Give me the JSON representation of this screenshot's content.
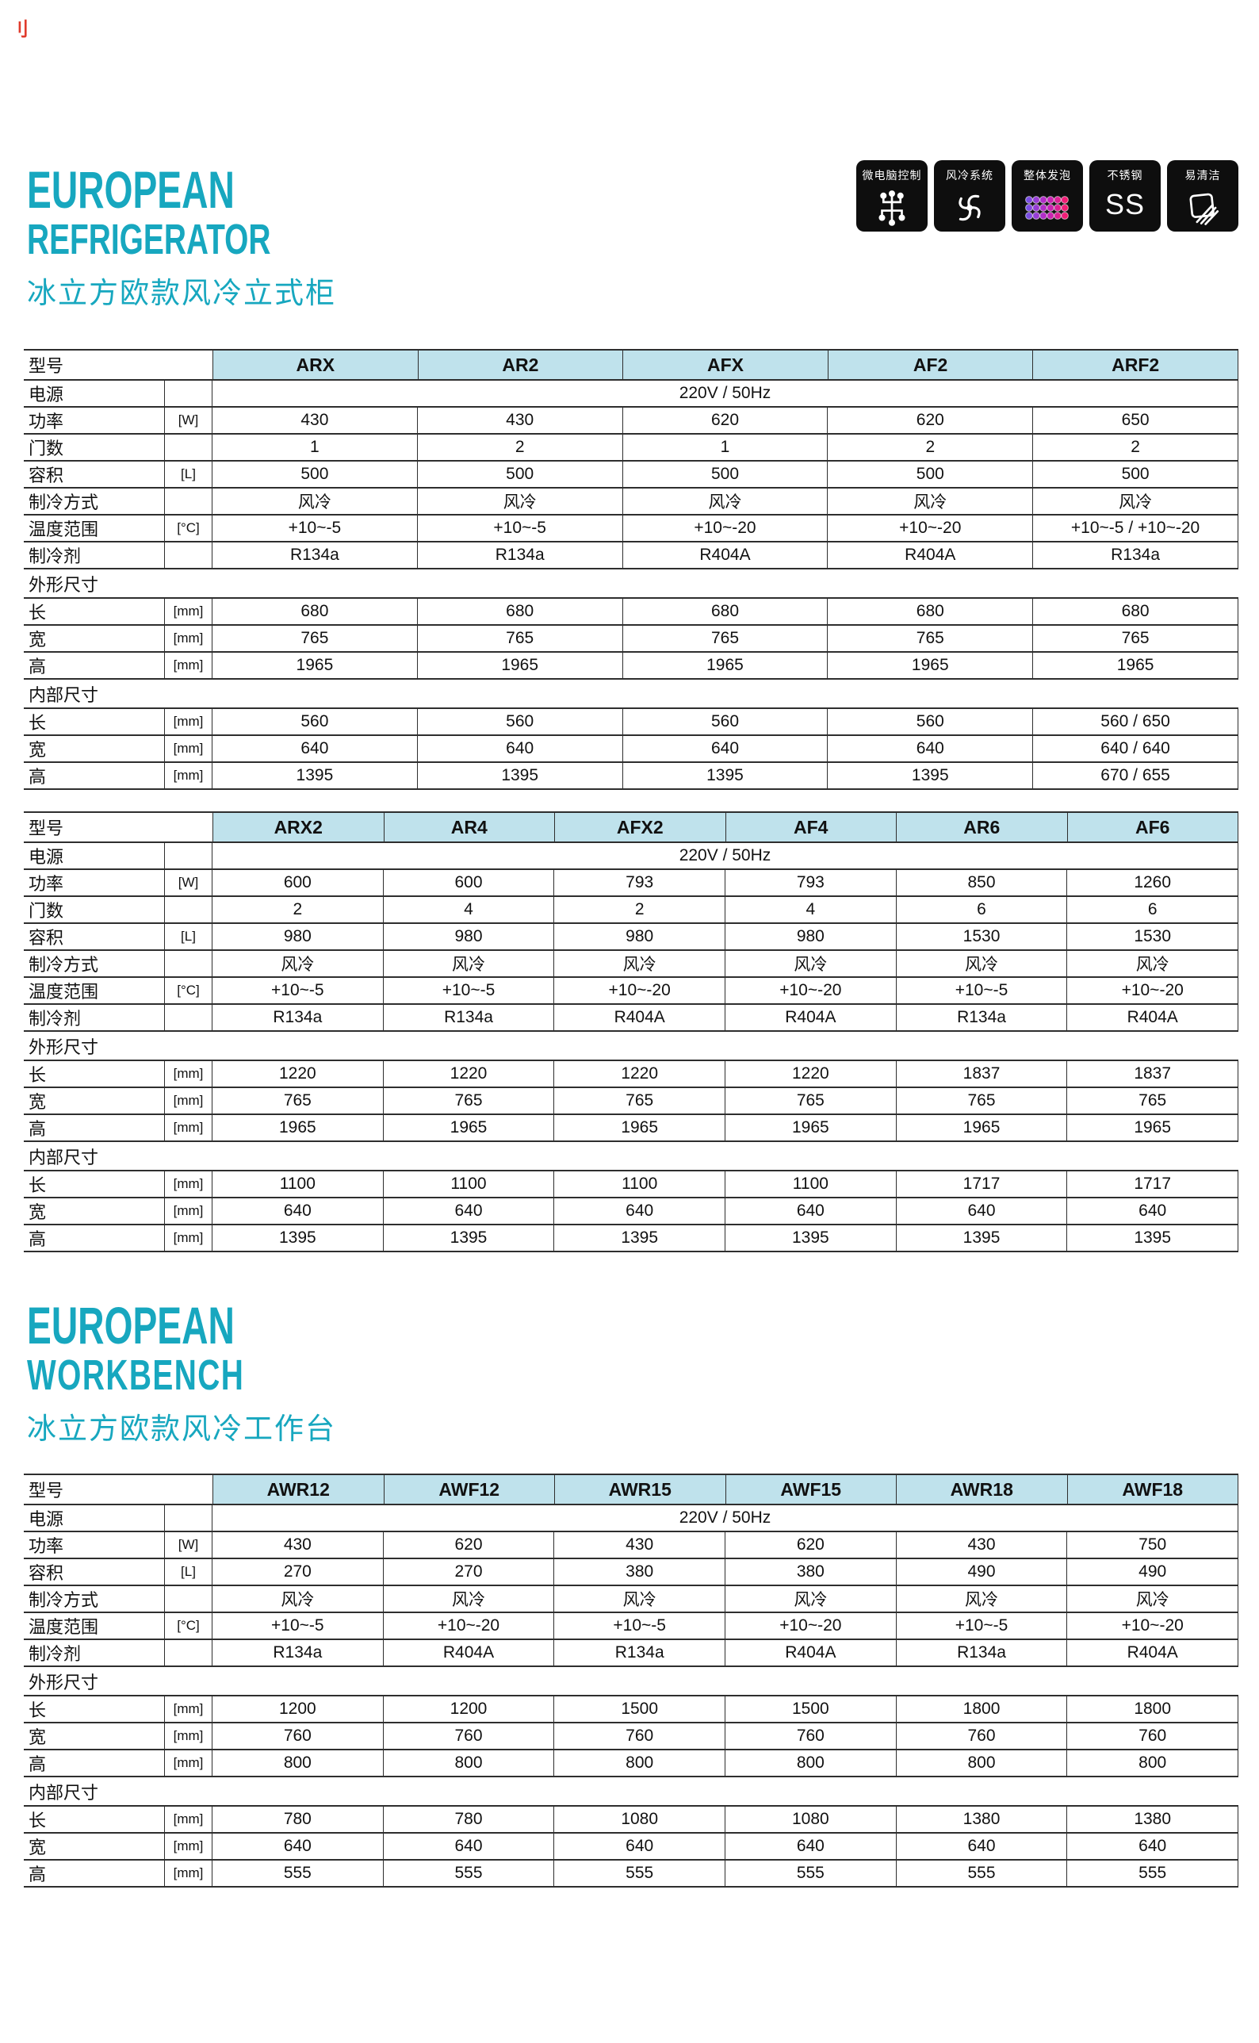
{
  "page": {
    "corner_mark": "刂",
    "accent_teal": "#17a7bf",
    "header_band_color": "#bfe2ec"
  },
  "sections": [
    {
      "title_line1": "EUROPEAN",
      "title_line2": "REFRIGERATOR",
      "title_zh": "冰立方欧款风冷立式柜"
    },
    {
      "title_line1": "EUROPEAN",
      "title_line2": "WORKBENCH",
      "title_zh": "冰立方欧款风冷工作台"
    }
  ],
  "badges": [
    {
      "label": "微电脑控制",
      "icon": "circuit-icon"
    },
    {
      "label": "风冷系统",
      "icon": "fan-icon"
    },
    {
      "label": "整体发泡",
      "icon": "foam-icon"
    },
    {
      "label": "不锈钢",
      "icon": "stainless-steel-icon",
      "icon_text": "SS"
    },
    {
      "label": "易清洁",
      "icon": "easy-clean-icon"
    }
  ],
  "tables": [
    {
      "model_label": "型号",
      "models": [
        "ARX",
        "AR2",
        "AFX",
        "AF2",
        "ARF2"
      ],
      "rows": [
        {
          "label": "电源",
          "unit": "",
          "span": "220V / 50Hz"
        },
        {
          "label": "功率",
          "unit": "[W]",
          "values": [
            "430",
            "430",
            "620",
            "620",
            "650"
          ]
        },
        {
          "label": "门数",
          "unit": "",
          "values": [
            "1",
            "2",
            "1",
            "2",
            "2"
          ]
        },
        {
          "label": "容积",
          "unit": "[L]",
          "values": [
            "500",
            "500",
            "500",
            "500",
            "500"
          ]
        },
        {
          "label": "制冷方式",
          "unit": "",
          "values": [
            "风冷",
            "风冷",
            "风冷",
            "风冷",
            "风冷"
          ]
        },
        {
          "label": "温度范围",
          "unit": "[°C]",
          "values": [
            "+10~-5",
            "+10~-5",
            "+10~-20",
            "+10~-20",
            "+10~-5 / +10~-20"
          ]
        },
        {
          "label": "制冷剂",
          "unit": "",
          "values": [
            "R134a",
            "R134a",
            "R404A",
            "R404A",
            "R134a"
          ]
        },
        {
          "section": "外形尺寸"
        },
        {
          "label": "长",
          "unit": "[mm]",
          "values": [
            "680",
            "680",
            "680",
            "680",
            "680"
          ]
        },
        {
          "label": "宽",
          "unit": "[mm]",
          "values": [
            "765",
            "765",
            "765",
            "765",
            "765"
          ]
        },
        {
          "label": "高",
          "unit": "[mm]",
          "values": [
            "1965",
            "1965",
            "1965",
            "1965",
            "1965"
          ]
        },
        {
          "section": "内部尺寸"
        },
        {
          "label": "长",
          "unit": "[mm]",
          "values": [
            "560",
            "560",
            "560",
            "560",
            "560 / 650"
          ]
        },
        {
          "label": "宽",
          "unit": "[mm]",
          "values": [
            "640",
            "640",
            "640",
            "640",
            "640 / 640"
          ]
        },
        {
          "label": "高",
          "unit": "[mm]",
          "values": [
            "1395",
            "1395",
            "1395",
            "1395",
            "670 / 655"
          ]
        }
      ]
    },
    {
      "model_label": "型号",
      "models": [
        "ARX2",
        "AR4",
        "AFX2",
        "AF4",
        "AR6",
        "AF6"
      ],
      "rows": [
        {
          "label": "电源",
          "unit": "",
          "span": "220V / 50Hz"
        },
        {
          "label": "功率",
          "unit": "[W]",
          "values": [
            "600",
            "600",
            "793",
            "793",
            "850",
            "1260"
          ]
        },
        {
          "label": "门数",
          "unit": "",
          "values": [
            "2",
            "4",
            "2",
            "4",
            "6",
            "6"
          ]
        },
        {
          "label": "容积",
          "unit": "[L]",
          "values": [
            "980",
            "980",
            "980",
            "980",
            "1530",
            "1530"
          ]
        },
        {
          "label": "制冷方式",
          "unit": "",
          "values": [
            "风冷",
            "风冷",
            "风冷",
            "风冷",
            "风冷",
            "风冷"
          ]
        },
        {
          "label": "温度范围",
          "unit": "[°C]",
          "values": [
            "+10~-5",
            "+10~-5",
            "+10~-20",
            "+10~-20",
            "+10~-5",
            "+10~-20"
          ]
        },
        {
          "label": "制冷剂",
          "unit": "",
          "values": [
            "R134a",
            "R134a",
            "R404A",
            "R404A",
            "R134a",
            "R404A"
          ]
        },
        {
          "section": "外形尺寸"
        },
        {
          "label": "长",
          "unit": "[mm]",
          "values": [
            "1220",
            "1220",
            "1220",
            "1220",
            "1837",
            "1837"
          ]
        },
        {
          "label": "宽",
          "unit": "[mm]",
          "values": [
            "765",
            "765",
            "765",
            "765",
            "765",
            "765"
          ]
        },
        {
          "label": "高",
          "unit": "[mm]",
          "values": [
            "1965",
            "1965",
            "1965",
            "1965",
            "1965",
            "1965"
          ]
        },
        {
          "section": "内部尺寸"
        },
        {
          "label": "长",
          "unit": "[mm]",
          "values": [
            "1100",
            "1100",
            "1100",
            "1100",
            "1717",
            "1717"
          ]
        },
        {
          "label": "宽",
          "unit": "[mm]",
          "values": [
            "640",
            "640",
            "640",
            "640",
            "640",
            "640"
          ]
        },
        {
          "label": "高",
          "unit": "[mm]",
          "values": [
            "1395",
            "1395",
            "1395",
            "1395",
            "1395",
            "1395"
          ]
        }
      ]
    },
    {
      "model_label": "型号",
      "models": [
        "AWR12",
        "AWF12",
        "AWR15",
        "AWF15",
        "AWR18",
        "AWF18"
      ],
      "rows": [
        {
          "label": "电源",
          "unit": "",
          "span": "220V / 50Hz"
        },
        {
          "label": "功率",
          "unit": "[W]",
          "values": [
            "430",
            "620",
            "430",
            "620",
            "430",
            "750"
          ]
        },
        {
          "label": "容积",
          "unit": "[L]",
          "values": [
            "270",
            "270",
            "380",
            "380",
            "490",
            "490"
          ]
        },
        {
          "label": "制冷方式",
          "unit": "",
          "values": [
            "风冷",
            "风冷",
            "风冷",
            "风冷",
            "风冷",
            "风冷"
          ]
        },
        {
          "label": "温度范围",
          "unit": "[°C]",
          "values": [
            "+10~-5",
            "+10~-20",
            "+10~-5",
            "+10~-20",
            "+10~-5",
            "+10~-20"
          ]
        },
        {
          "label": "制冷剂",
          "unit": "",
          "values": [
            "R134a",
            "R404A",
            "R134a",
            "R404A",
            "R134a",
            "R404A"
          ]
        },
        {
          "section": "外形尺寸"
        },
        {
          "label": "长",
          "unit": "[mm]",
          "values": [
            "1200",
            "1200",
            "1500",
            "1500",
            "1800",
            "1800"
          ]
        },
        {
          "label": "宽",
          "unit": "[mm]",
          "values": [
            "760",
            "760",
            "760",
            "760",
            "760",
            "760"
          ]
        },
        {
          "label": "高",
          "unit": "[mm]",
          "values": [
            "800",
            "800",
            "800",
            "800",
            "800",
            "800"
          ]
        },
        {
          "section": "内部尺寸"
        },
        {
          "label": "长",
          "unit": "[mm]",
          "values": [
            "780",
            "780",
            "1080",
            "1080",
            "1380",
            "1380"
          ]
        },
        {
          "label": "宽",
          "unit": "[mm]",
          "values": [
            "640",
            "640",
            "640",
            "640",
            "640",
            "640"
          ]
        },
        {
          "label": "高",
          "unit": "[mm]",
          "values": [
            "555",
            "555",
            "555",
            "555",
            "555",
            "555"
          ]
        }
      ]
    }
  ]
}
